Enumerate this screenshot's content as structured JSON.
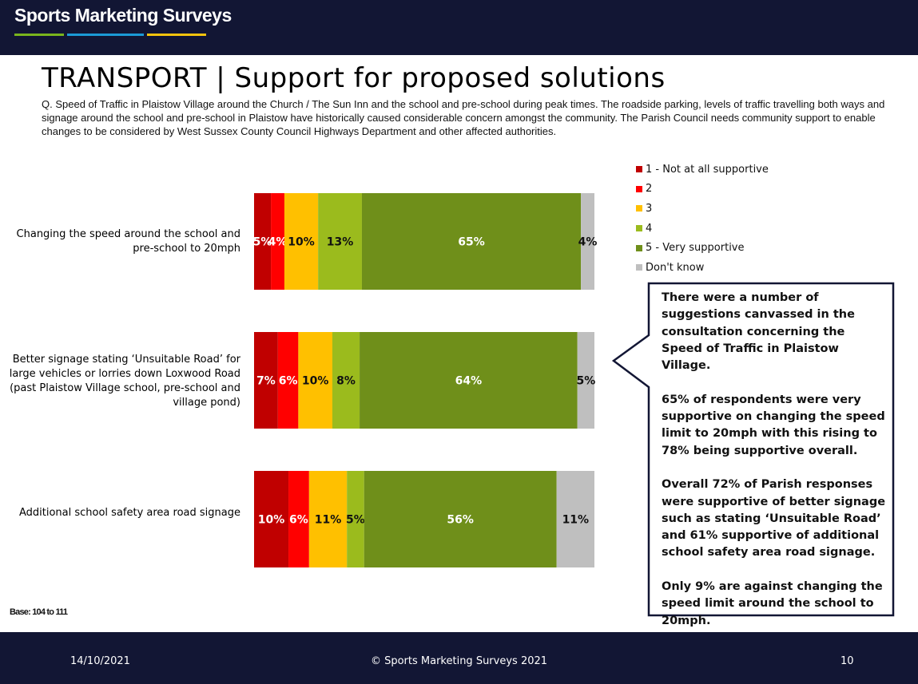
{
  "header": {
    "logo_text": "Sports Marketing Surveys",
    "logo_line_colors": [
      "#7ab51d",
      "#1b9ad6",
      "#f6c40e"
    ]
  },
  "title": "TRANSPORT  |  Support for proposed solutions",
  "question": "Q. Speed of Traffic in Plaistow Village around the Church / The Sun Inn and the school and pre-school during peak times. The roadside parking, levels of traffic travelling both ways and signage around the school and pre-school in Plaistow have historically caused considerable concern amongst the community. The Parish Council needs community support to enable changes to be considered by West Sussex County Council Highways Department and other affected authorities.",
  "rows": [
    {
      "label": "Changing the speed around the school and pre-school to 20mph"
    },
    {
      "label": "Better signage stating ‘Unsuitable Road’ for large vehicles or lorries down Loxwood Road (past Plaistow Village school, pre-school and village pond)"
    },
    {
      "label": "Additional school safety area road signage"
    }
  ],
  "chart_data": {
    "type": "bar",
    "orientation": "horizontal",
    "stacked": true,
    "percent_stacked": true,
    "categories": [
      "Changing the speed around the school and pre-school to 20mph",
      "Better signage stating ‘Unsuitable Road’ for large vehicles or lorries down Loxwood Road (past Plaistow Village school, pre-school and village pond)",
      "Additional school safety area road signage"
    ],
    "series": [
      {
        "name": "1 - Not at all supportive",
        "color": "#c00000",
        "label_color": "#ffffff",
        "values": [
          5,
          7,
          10
        ]
      },
      {
        "name": "2",
        "color": "#ff0000",
        "label_color": "#ffffff",
        "values": [
          4,
          6,
          6
        ]
      },
      {
        "name": "3",
        "color": "#ffc000",
        "label_color": "#111111",
        "values": [
          10,
          10,
          11
        ]
      },
      {
        "name": "4",
        "color": "#9bbb1d",
        "label_color": "#111111",
        "values": [
          13,
          8,
          5
        ]
      },
      {
        "name": "5 - Very supportive",
        "color": "#6f8f1a",
        "label_color": "#ffffff",
        "values": [
          65,
          64,
          56
        ]
      },
      {
        "name": "Don't know",
        "color": "#bfbfbf",
        "label_color": "#111111",
        "values": [
          4,
          5,
          11
        ]
      }
    ],
    "legend_position": "top-right",
    "grid": false
  },
  "callout_text": "There were a number of suggestions canvassed in the consultation concerning the Speed of Traffic in Plaistow Village.\n\n65% of respondents were very supportive on changing the speed limit to 20mph with this rising to 78% being supportive overall.\n\nOverall 72% of Parish responses were supportive of better signage such as stating ‘Unsuitable Road’ and 61% supportive of additional school safety area road signage.\n\nOnly 9% are against changing the speed limit around the school to 20mph.",
  "base_note": "Base: 104 to 111",
  "footer": {
    "date": "14/10/2021",
    "copyright": "© Sports Marketing Surveys 2021",
    "page": "10"
  }
}
